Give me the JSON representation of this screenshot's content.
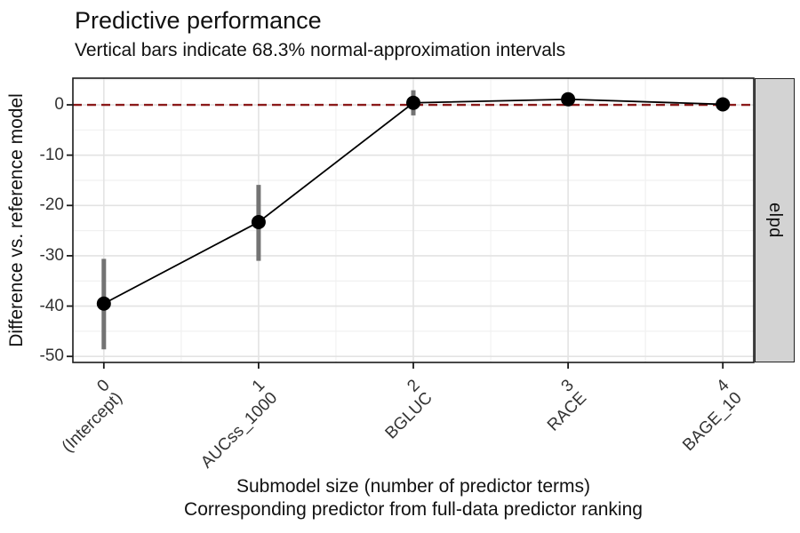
{
  "chart_data": {
    "type": "line",
    "title": "Predictive performance",
    "subtitle": "Vertical bars indicate 68.3% normal-approximation intervals",
    "ylabel": "Difference vs. reference model",
    "xlabel_line1": "Submodel size (number of predictor terms)",
    "xlabel_line2": "Corresponding predictor from full-data predictor ranking",
    "facet_label": "elpd",
    "x": [
      0,
      1,
      2,
      3,
      4
    ],
    "x_tick_numbers": [
      "0",
      "1",
      "2",
      "3",
      "4"
    ],
    "x_tick_names": [
      "(Intercept)",
      "AUCss_1000",
      "BGLUC",
      "RACE",
      "BAGE_10"
    ],
    "values": [
      -39.5,
      -23.3,
      0.4,
      1.1,
      0.1
    ],
    "intervals": [
      [
        -48.6,
        -30.6
      ],
      [
        -31.0,
        -15.9
      ],
      [
        -2.1,
        2.9
      ],
      null,
      null
    ],
    "y_ticks": [
      0,
      -10,
      -20,
      -30,
      -40,
      -50
    ],
    "y_minor_ticks": [
      5,
      -5,
      -15,
      -25,
      -35,
      -45
    ],
    "x_minor_ticks": [
      0.5,
      1.5,
      2.5,
      3.5
    ],
    "ylim": [
      -51.2,
      5.3
    ],
    "xlim": [
      -0.2,
      4.2
    ],
    "reference_line_y": 0,
    "grid": "on",
    "legend": "none",
    "colors": {
      "reference_line": "#8B1A1A",
      "point": "#000000",
      "trend_line": "#000000",
      "interval_bar": "#737373",
      "grid_major": "#E3E3E3",
      "grid_minor": "#F1F1F1",
      "panel_border": "#1a1a1a",
      "tick_mark": "#1a1a1a",
      "strip_bg": "#D3D3D3",
      "axis_text": "#333333"
    }
  }
}
